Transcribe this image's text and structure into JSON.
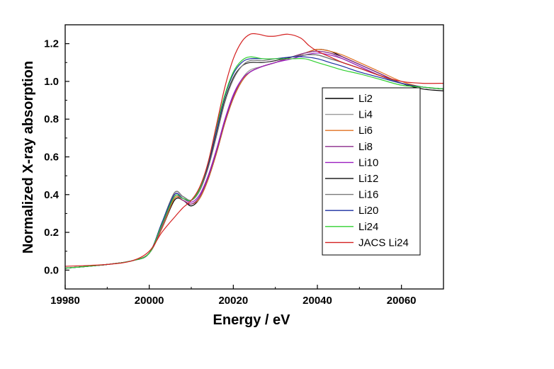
{
  "chart_data": {
    "type": "line",
    "title": "",
    "xlabel": "Energy / eV",
    "ylabel": "Normalized X-ray absorption",
    "xlim": [
      19980,
      20070
    ],
    "ylim": [
      -0.1,
      1.3
    ],
    "xticks": [
      19980,
      20000,
      20020,
      20040,
      20060
    ],
    "yticks": [
      0.0,
      0.2,
      0.4,
      0.6,
      0.8,
      1.0,
      1.2
    ],
    "xtick_labels": [
      "19980",
      "20000",
      "20020",
      "20040",
      "20060"
    ],
    "ytick_labels": [
      "0.0",
      "0.2",
      "0.4",
      "0.6",
      "0.8",
      "1.0",
      "1.2"
    ],
    "grid": false,
    "legend_position": "right",
    "series": [
      {
        "name": "Li2",
        "color": "#000000",
        "x": [
          19980,
          19990,
          19996,
          20000,
          20003,
          20006,
          20008,
          20010,
          20012,
          20014,
          20016,
          20018,
          20020,
          20022,
          20024,
          20027,
          20030,
          20034,
          20037,
          20040,
          20043,
          20046,
          20050,
          20055,
          20060,
          20065,
          20070
        ],
        "y": [
          0.01,
          0.03,
          0.05,
          0.09,
          0.22,
          0.37,
          0.37,
          0.34,
          0.38,
          0.48,
          0.62,
          0.78,
          0.91,
          1.0,
          1.05,
          1.08,
          1.1,
          1.13,
          1.15,
          1.17,
          1.16,
          1.13,
          1.09,
          1.04,
          0.99,
          0.96,
          0.95
        ]
      },
      {
        "name": "Li4",
        "color": "#9a9a9a",
        "x": [
          19980,
          19990,
          19996,
          20000,
          20003,
          20006,
          20008,
          20010,
          20012,
          20014,
          20016,
          20018,
          20020,
          20022,
          20024,
          20027,
          20030,
          20034,
          20037,
          20040,
          20043,
          20046,
          20050,
          20055,
          20060,
          20065,
          20070
        ],
        "y": [
          0.01,
          0.03,
          0.05,
          0.09,
          0.23,
          0.38,
          0.37,
          0.35,
          0.39,
          0.49,
          0.63,
          0.79,
          0.92,
          1.01,
          1.06,
          1.08,
          1.1,
          1.13,
          1.15,
          1.16,
          1.15,
          1.12,
          1.08,
          1.03,
          0.99,
          0.97,
          0.96
        ]
      },
      {
        "name": "Li6",
        "color": "#e07020",
        "x": [
          19980,
          19990,
          19996,
          20000,
          20003,
          20006,
          20008,
          20010,
          20012,
          20014,
          20016,
          20018,
          20020,
          20022,
          20024,
          20027,
          20030,
          20034,
          20037,
          20040,
          20043,
          20046,
          20050,
          20055,
          20060,
          20065,
          20070
        ],
        "y": [
          0.01,
          0.03,
          0.05,
          0.09,
          0.22,
          0.38,
          0.37,
          0.35,
          0.38,
          0.48,
          0.62,
          0.78,
          0.91,
          1.0,
          1.05,
          1.08,
          1.1,
          1.13,
          1.15,
          1.17,
          1.16,
          1.14,
          1.1,
          1.05,
          1.0,
          0.97,
          0.96
        ]
      },
      {
        "name": "Li8",
        "color": "#8b2a8b",
        "x": [
          19980,
          19990,
          19996,
          20000,
          20003,
          20006,
          20008,
          20010,
          20012,
          20014,
          20016,
          20018,
          20020,
          20022,
          20024,
          20027,
          20030,
          20034,
          20037,
          20040,
          20043,
          20046,
          20050,
          20055,
          20060,
          20065,
          20070
        ],
        "y": [
          0.01,
          0.03,
          0.05,
          0.09,
          0.23,
          0.39,
          0.37,
          0.35,
          0.39,
          0.49,
          0.63,
          0.79,
          0.92,
          1.01,
          1.05,
          1.08,
          1.1,
          1.13,
          1.15,
          1.16,
          1.15,
          1.13,
          1.09,
          1.04,
          0.99,
          0.97,
          0.96
        ]
      },
      {
        "name": "Li10",
        "color": "#9a1fc0",
        "x": [
          19980,
          19990,
          19996,
          20000,
          20003,
          20006,
          20008,
          20010,
          20012,
          20014,
          20016,
          20018,
          20020,
          20022,
          20024,
          20027,
          20030,
          20034,
          20037,
          20040,
          20043,
          20046,
          20050,
          20055,
          20060,
          20065,
          20070
        ],
        "y": [
          0.01,
          0.03,
          0.05,
          0.09,
          0.24,
          0.4,
          0.38,
          0.36,
          0.4,
          0.5,
          0.64,
          0.8,
          0.93,
          1.01,
          1.05,
          1.08,
          1.1,
          1.12,
          1.14,
          1.15,
          1.14,
          1.12,
          1.08,
          1.03,
          0.99,
          0.97,
          0.96
        ]
      },
      {
        "name": "Li12",
        "color": "#222222",
        "x": [
          19980,
          19990,
          19996,
          20000,
          20003,
          20006,
          20008,
          20010,
          20012,
          20014,
          20016,
          20018,
          20020,
          20022,
          20024,
          20027,
          20030,
          20034,
          20037,
          20040,
          20043,
          20046,
          20050,
          20055,
          20060,
          20065,
          20070
        ],
        "y": [
          0.01,
          0.03,
          0.05,
          0.09,
          0.25,
          0.41,
          0.39,
          0.37,
          0.43,
          0.55,
          0.72,
          0.9,
          1.02,
          1.08,
          1.1,
          1.1,
          1.11,
          1.13,
          1.14,
          1.14,
          1.12,
          1.1,
          1.07,
          1.03,
          0.99,
          0.97,
          0.96
        ]
      },
      {
        "name": "Li16",
        "color": "#7a7a7a",
        "x": [
          19980,
          19990,
          19996,
          20000,
          20003,
          20006,
          20008,
          20010,
          20012,
          20014,
          20016,
          20018,
          20020,
          20022,
          20024,
          20027,
          20030,
          20034,
          20037,
          20040,
          20043,
          20046,
          20050,
          20055,
          20060,
          20065,
          20070
        ],
        "y": [
          0.01,
          0.03,
          0.05,
          0.09,
          0.25,
          0.41,
          0.39,
          0.37,
          0.42,
          0.54,
          0.71,
          0.89,
          1.01,
          1.08,
          1.11,
          1.11,
          1.12,
          1.13,
          1.14,
          1.14,
          1.12,
          1.1,
          1.07,
          1.03,
          0.99,
          0.97,
          0.96
        ]
      },
      {
        "name": "Li20",
        "color": "#1a2ea0",
        "x": [
          19980,
          19990,
          19996,
          20000,
          20003,
          20006,
          20008,
          20010,
          20012,
          20014,
          20016,
          20018,
          20020,
          20022,
          20024,
          20027,
          20030,
          20034,
          20037,
          20040,
          20043,
          20046,
          20050,
          20055,
          20060,
          20065,
          20070
        ],
        "y": [
          0.01,
          0.03,
          0.05,
          0.09,
          0.25,
          0.4,
          0.38,
          0.37,
          0.43,
          0.56,
          0.74,
          0.92,
          1.04,
          1.1,
          1.12,
          1.12,
          1.12,
          1.13,
          1.13,
          1.12,
          1.1,
          1.08,
          1.05,
          1.02,
          0.99,
          0.97,
          0.96
        ]
      },
      {
        "name": "Li24",
        "color": "#30d030",
        "x": [
          19980,
          19990,
          19996,
          20000,
          20003,
          20006,
          20008,
          20010,
          20012,
          20014,
          20016,
          20018,
          20020,
          20022,
          20024,
          20027,
          20030,
          20034,
          20037,
          20040,
          20043,
          20046,
          20050,
          20055,
          20060,
          20065,
          20070
        ],
        "y": [
          0.01,
          0.03,
          0.05,
          0.09,
          0.24,
          0.39,
          0.38,
          0.37,
          0.43,
          0.57,
          0.76,
          0.93,
          1.05,
          1.11,
          1.13,
          1.12,
          1.12,
          1.12,
          1.12,
          1.1,
          1.08,
          1.06,
          1.04,
          1.01,
          0.98,
          0.97,
          0.96
        ]
      },
      {
        "name": "JACS Li24",
        "color": "#d42020",
        "x": [
          19980,
          19990,
          19996,
          20000,
          20003,
          20006,
          20008,
          20010,
          20012,
          20014,
          20016,
          20018,
          20020,
          20022,
          20024,
          20026,
          20028,
          20030,
          20033,
          20036,
          20038,
          20040,
          20043,
          20046,
          20050,
          20055,
          20060,
          20065,
          20070
        ],
        "y": [
          0.02,
          0.03,
          0.05,
          0.1,
          0.2,
          0.28,
          0.33,
          0.37,
          0.44,
          0.57,
          0.77,
          0.97,
          1.12,
          1.21,
          1.25,
          1.25,
          1.24,
          1.24,
          1.25,
          1.23,
          1.19,
          1.16,
          1.13,
          1.1,
          1.07,
          1.03,
          1.0,
          0.99,
          0.99
        ]
      }
    ]
  }
}
